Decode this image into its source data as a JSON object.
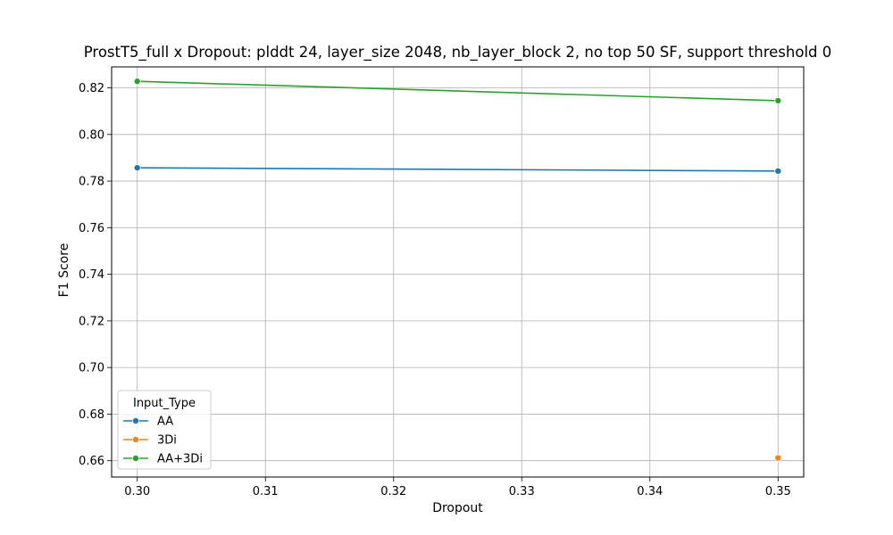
{
  "chart_data": {
    "type": "line",
    "title": "ProstT5_full x Dropout: plddt 24, layer_size 2048, nb_layer_block 2, no top 50 SF, support threshold 0",
    "xlabel": "Dropout",
    "ylabel": "F1 Score",
    "xlim": [
      0.298,
      0.352
    ],
    "ylim": [
      0.653,
      0.829
    ],
    "x_ticks": [
      "0.30",
      "0.31",
      "0.32",
      "0.33",
      "0.34",
      "0.35"
    ],
    "x_tick_values": [
      0.3,
      0.31,
      0.32,
      0.33,
      0.34,
      0.35
    ],
    "y_ticks": [
      "0.66",
      "0.68",
      "0.70",
      "0.72",
      "0.74",
      "0.76",
      "0.78",
      "0.80",
      "0.82"
    ],
    "y_tick_values": [
      0.66,
      0.68,
      0.7,
      0.72,
      0.74,
      0.76,
      0.78,
      0.8,
      0.82
    ],
    "grid": true,
    "legend": {
      "title": "Input_Type",
      "placement": "lower-left"
    },
    "series": [
      {
        "name": "AA",
        "color": "#1f77b4",
        "points": [
          [
            0.3,
            0.7857
          ],
          [
            0.35,
            0.7843
          ]
        ]
      },
      {
        "name": "3Di",
        "color": "#ff7f0e",
        "points": [
          [
            0.35,
            0.6612
          ]
        ]
      },
      {
        "name": "AA+3Di",
        "color": "#2ca02c",
        "points": [
          [
            0.3,
            0.8228
          ],
          [
            0.35,
            0.8145
          ]
        ]
      }
    ]
  }
}
